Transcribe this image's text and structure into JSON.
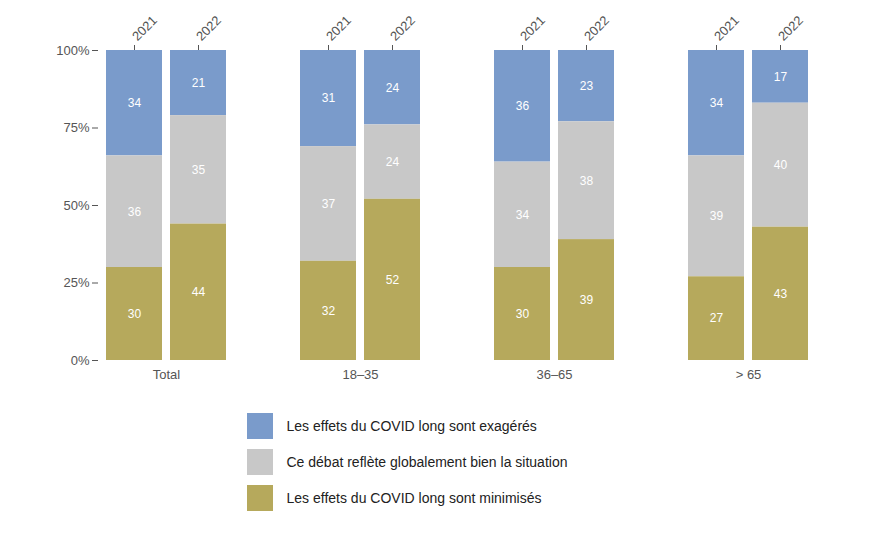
{
  "chart_data": {
    "type": "bar",
    "stacked": true,
    "data_labels": true,
    "legend": "bottom",
    "categories": [
      "Total",
      "18–35",
      "36–65",
      "> 65"
    ],
    "subcategories": [
      "2021",
      "2022"
    ],
    "ylim": [
      0,
      100
    ],
    "yticks": [
      {
        "value": 0,
        "label": "0%"
      },
      {
        "value": 25,
        "label": "25%"
      },
      {
        "value": 50,
        "label": "50%"
      },
      {
        "value": 75,
        "label": "75%"
      },
      {
        "value": 100,
        "label": "100%"
      }
    ],
    "series": [
      {
        "name": "Les effets du COVID long sont exagérés",
        "color": "#7a9bcb",
        "values": [
          [
            34,
            21
          ],
          [
            31,
            24
          ],
          [
            36,
            23
          ],
          [
            34,
            17
          ]
        ]
      },
      {
        "name": "Ce débat reflète globalement bien la situation",
        "color": "#c8c8c8",
        "values": [
          [
            36,
            35
          ],
          [
            37,
            24
          ],
          [
            34,
            38
          ],
          [
            39,
            40
          ]
        ]
      },
      {
        "name": "Les effets du COVID long sont minimisés",
        "color": "#b6a95c",
        "values": [
          [
            30,
            44
          ],
          [
            32,
            52
          ],
          [
            30,
            39
          ],
          [
            27,
            43
          ]
        ]
      }
    ]
  }
}
